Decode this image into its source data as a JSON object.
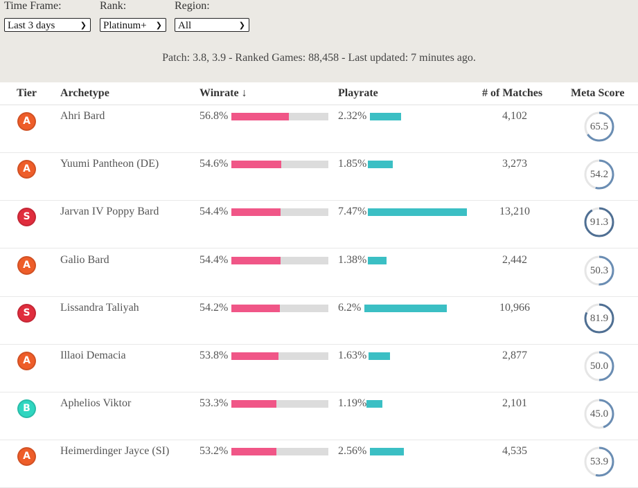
{
  "filters": {
    "time_frame": {
      "label": "Time Frame:",
      "value": "Last 3 days"
    },
    "rank": {
      "label": "Rank:",
      "value": "Platinum+"
    },
    "region": {
      "label": "Region:",
      "value": "All"
    }
  },
  "info_text": "Patch: 3.8, 3.9 - Ranked Games: 88,458 - Last updated: 7 minutes ago.",
  "table": {
    "headers": {
      "tier": "Tier",
      "archetype": "Archetype",
      "winrate": "Winrate ↓",
      "playrate": "Playrate",
      "matches": "# of Matches",
      "meta_score": "Meta Score"
    },
    "rows": [
      {
        "tier": "A",
        "archetype": "Ahri Bard",
        "winrate": "56.8%",
        "winrate_value": 56.8,
        "playrate": "2.32%",
        "playrate_value": 2.32,
        "matches": "4,102",
        "meta_score": "65.5",
        "meta_value": 65.5
      },
      {
        "tier": "A",
        "archetype": "Yuumi Pantheon (DE)",
        "winrate": "54.6%",
        "winrate_value": 54.6,
        "playrate": "1.85%",
        "playrate_value": 1.85,
        "matches": "3,273",
        "meta_score": "54.2",
        "meta_value": 54.2
      },
      {
        "tier": "S",
        "archetype": "Jarvan IV Poppy Bard",
        "winrate": "54.4%",
        "winrate_value": 54.4,
        "playrate": "7.47%",
        "playrate_value": 7.47,
        "matches": "13,210",
        "meta_score": "91.3",
        "meta_value": 91.3
      },
      {
        "tier": "A",
        "archetype": "Galio Bard",
        "winrate": "54.4%",
        "winrate_value": 54.4,
        "playrate": "1.38%",
        "playrate_value": 1.38,
        "matches": "2,442",
        "meta_score": "50.3",
        "meta_value": 50.3
      },
      {
        "tier": "S",
        "archetype": "Lissandra Taliyah",
        "winrate": "54.2%",
        "winrate_value": 54.2,
        "playrate": "6.2%",
        "playrate_value": 6.2,
        "matches": "10,966",
        "meta_score": "81.9",
        "meta_value": 81.9
      },
      {
        "tier": "A",
        "archetype": "Illaoi Demacia",
        "winrate": "53.8%",
        "winrate_value": 53.8,
        "playrate": "1.63%",
        "playrate_value": 1.63,
        "matches": "2,877",
        "meta_score": "50.0",
        "meta_value": 50.0
      },
      {
        "tier": "B",
        "archetype": "Aphelios Viktor",
        "winrate": "53.3%",
        "winrate_value": 53.3,
        "playrate": "1.19%",
        "playrate_value": 1.19,
        "matches": "2,101",
        "meta_score": "45.0",
        "meta_value": 45.0
      },
      {
        "tier": "A",
        "archetype": "Heimerdinger Jayce (SI)",
        "winrate": "53.2%",
        "winrate_value": 53.2,
        "playrate": "2.56%",
        "playrate_value": 2.56,
        "matches": "4,535",
        "meta_score": "53.9",
        "meta_value": 53.9
      }
    ]
  },
  "colors": {
    "winrate_bar": "#f05687",
    "playrate_bar": "#3bbfc4",
    "tier_A": "#ee5d29",
    "tier_S": "#e02d3d",
    "tier_B": "#2fd6c0",
    "meta_ring": "#5b82ad"
  },
  "icons": {
    "dropdown": "chevron-down-icon"
  }
}
